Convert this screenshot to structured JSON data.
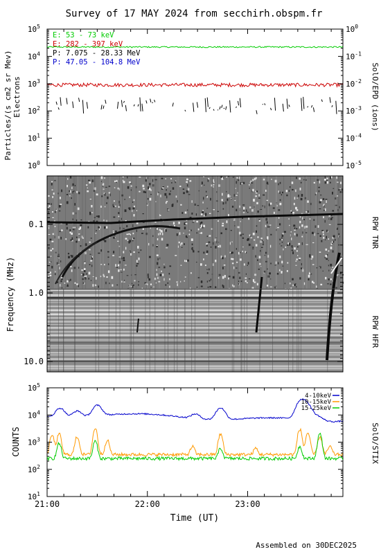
{
  "title": "Survey of 17 MAY 2024 from secchirh.obspm.fr",
  "footer": "Assembled on 30DEC2025",
  "chart_data": [
    {
      "type": "line",
      "panel": "particles",
      "ylabel": "Particles/(s cm2 sr Mev)",
      "ylabel2": "Electrons",
      "right_label": "SolO/EPD (ions)",
      "y_scale": "log",
      "ylim": [
        1,
        100000
      ],
      "y_ticks": [
        "10^0",
        "10^1",
        "10^2",
        "10^3",
        "10^4",
        "10^5"
      ],
      "y2_scale": "log",
      "y2lim": [
        1e-05,
        1
      ],
      "y2_ticks": [
        "10^-5",
        "10^-4",
        "10^-3",
        "10^-2",
        "10^-1",
        "10^0"
      ],
      "xlim_hours": [
        21.0,
        23.95
      ],
      "series": [
        {
          "name": "E: 53 - 73 keV",
          "color": "#00cc00",
          "axis": "left",
          "level": 22000
        },
        {
          "name": "E: 282 - 397 keV",
          "color": "#cc0000",
          "axis": "left",
          "level": 900
        },
        {
          "name": "P: 7.075 - 28.33 MeV",
          "color": "#000000",
          "axis": "right",
          "level": 0.0015
        },
        {
          "name": "P: 47.05 - 104.8 MeV",
          "color": "#0000cc",
          "axis": "right",
          "level": null
        }
      ]
    },
    {
      "type": "heatmap",
      "panel": "radio",
      "ylabel": "Frequency (MHz)",
      "y_scale": "log",
      "y_reversed": true,
      "y_ticks": [
        "0.1",
        "1.0",
        "10.0"
      ],
      "sections": [
        "RPW TNR",
        "RPW HFR"
      ],
      "xlim_hours": [
        21.0,
        23.95
      ]
    },
    {
      "type": "line",
      "panel": "stix",
      "ylabel": "COUNTS",
      "right_label": "SolO/STIX",
      "y_scale": "log",
      "ylim": [
        10,
        100000
      ],
      "y_ticks": [
        "10^1",
        "10^2",
        "10^3",
        "10^4",
        "10^5"
      ],
      "xlabel": "Time (UT)",
      "x_ticks": [
        "21:00",
        "22:00",
        "23:00"
      ],
      "xlim_hours": [
        21.0,
        23.95
      ],
      "series": [
        {
          "name": "4-10keV",
          "color": "#0000cc",
          "baseline": 8500,
          "peaks": [
            [
              21.13,
              18000
            ],
            [
              21.3,
              14000
            ],
            [
              21.5,
              22000
            ],
            [
              22.48,
              12000
            ],
            [
              22.73,
              20000
            ],
            [
              23.53,
              35000
            ],
            [
              23.6,
              25000
            ],
            [
              23.7,
              12000
            ],
            [
              23.78,
              9000
            ]
          ]
        },
        {
          "name": "10-15keV",
          "color": "#ff9900",
          "baseline": 350,
          "peaks": [
            [
              21.05,
              1800
            ],
            [
              21.12,
              2000
            ],
            [
              21.3,
              1600
            ],
            [
              21.48,
              3200
            ],
            [
              21.6,
              1200
            ],
            [
              22.45,
              700
            ],
            [
              22.73,
              2000
            ],
            [
              23.08,
              600
            ],
            [
              23.52,
              3000
            ],
            [
              23.6,
              2200
            ],
            [
              23.72,
              1600
            ],
            [
              23.82,
              700
            ]
          ]
        },
        {
          "name": "15-25keV",
          "color": "#00cc00",
          "baseline": 250,
          "peaks": [
            [
              21.12,
              900
            ],
            [
              21.48,
              1100
            ],
            [
              22.73,
              600
            ],
            [
              23.52,
              700
            ],
            [
              23.72,
              2000
            ]
          ]
        }
      ]
    }
  ],
  "colors": {
    "axis": "#000000"
  }
}
